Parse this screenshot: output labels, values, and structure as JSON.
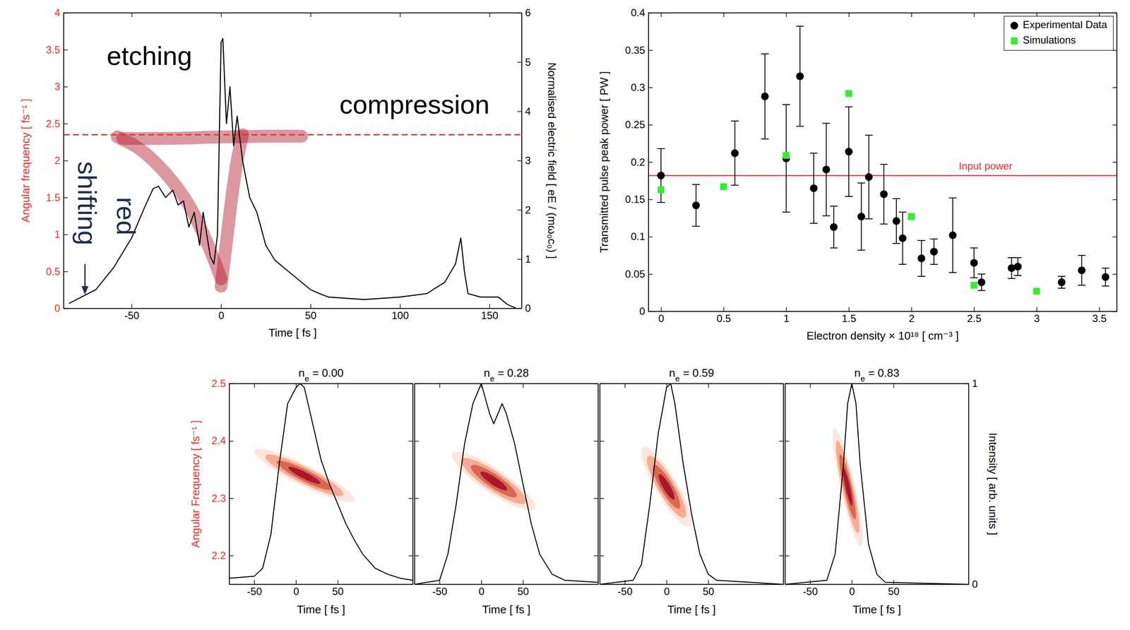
{
  "chart_data": [
    {
      "type": "line",
      "xlabel": "Time [ fs ]",
      "ylabel": "Angular frequency [ fs⁻¹ ]",
      "y2label": "Normalised electric field [ eE / (mω₀c₀) ]",
      "xlim": [
        -88,
        168
      ],
      "xticks": [
        -50,
        0,
        50,
        100,
        150
      ],
      "ylim": [
        0,
        4
      ],
      "yticks": [
        0,
        0.5,
        1,
        1.5,
        2,
        2.5,
        3,
        3.5,
        4
      ],
      "y2lim": [
        0,
        6
      ],
      "y2ticks": [
        0,
        1,
        2,
        3,
        4,
        5,
        6
      ],
      "hline": {
        "value": 2.35,
        "color": "#e8332a",
        "line_style": "dashed"
      },
      "annotations": [
        "etching",
        "compression",
        "red",
        "shifting"
      ],
      "series": [
        {
          "type": "band",
          "color": "#b2182b",
          "x": [
            -58,
            -45,
            -30,
            -18,
            -8,
            0
          ],
          "values": [
            2.32,
            2.15,
            1.8,
            1.4,
            0.9,
            0.4
          ]
        },
        {
          "type": "band",
          "color": "#b2182b",
          "x": [
            0,
            3,
            6,
            9,
            12
          ],
          "values": [
            0.3,
            0.9,
            1.5,
            2.0,
            2.35
          ]
        },
        {
          "type": "band",
          "color": "#b2182b",
          "x": [
            -55,
            -30,
            0,
            25,
            45
          ],
          "values": [
            2.3,
            2.3,
            2.32,
            2.33,
            2.33
          ]
        },
        {
          "type": "line",
          "color": "#000000",
          "axis": "y2",
          "x": [
            -85,
            -70,
            -60,
            -50,
            -43,
            -38,
            -35,
            -31,
            -27,
            -24,
            -21,
            -18,
            -15,
            -12,
            -10,
            -8,
            -6,
            -4,
            -2,
            0,
            1,
            3,
            5,
            7,
            9,
            12,
            16,
            20,
            25,
            30,
            35,
            40,
            45,
            50,
            55,
            60,
            80,
            100,
            115,
            125,
            131,
            134,
            136,
            138,
            145,
            155,
            160,
            165
          ],
          "values": [
            0.1,
            0.38,
            0.83,
            1.43,
            2.03,
            2.43,
            2.48,
            2.25,
            2.4,
            2.1,
            2.18,
            1.65,
            1.95,
            1.28,
            1.95,
            1.5,
            1.05,
            0.9,
            1.5,
            5.4,
            5.48,
            3.75,
            4.5,
            3.3,
            3.9,
            3.0,
            2.25,
            1.95,
            1.28,
            0.98,
            0.83,
            0.68,
            0.53,
            0.38,
            0.3,
            0.23,
            0.18,
            0.23,
            0.3,
            0.53,
            0.9,
            1.43,
            0.75,
            0.3,
            0.23,
            0.23,
            0.08,
            0
          ]
        }
      ]
    },
    {
      "type": "scatter",
      "xlabel": "Electron density × 10¹⁸ [ cm⁻³ ]",
      "ylabel": "Transmitted pulse peak power [ PW ]",
      "xlim": [
        -0.1,
        3.64
      ],
      "xticks": [
        0,
        0.5,
        1,
        1.5,
        2,
        2.5,
        3,
        3.5
      ],
      "ylim": [
        0,
        0.4
      ],
      "yticks": [
        0,
        0.05,
        0.1,
        0.15,
        0.2,
        0.25,
        0.3,
        0.35,
        0.4
      ],
      "legend": "upper right",
      "hline": {
        "value": 0.182,
        "label": "Input power",
        "color": "#e8332a"
      },
      "series": [
        {
          "name": "Experimental Data",
          "color": "#000000",
          "marker": "circle",
          "x": [
            0,
            0.28,
            0.59,
            0.83,
            1.0,
            1.11,
            1.22,
            1.32,
            1.38,
            1.5,
            1.6,
            1.66,
            1.78,
            1.88,
            1.93,
            2.08,
            2.18,
            2.33,
            2.5,
            2.56,
            2.8,
            2.85,
            3.2,
            3.36,
            3.55
          ],
          "values": [
            0.182,
            0.142,
            0.212,
            0.288,
            0.205,
            0.315,
            0.165,
            0.19,
            0.113,
            0.214,
            0.127,
            0.18,
            0.157,
            0.121,
            0.098,
            0.071,
            0.08,
            0.102,
            0.065,
            0.039,
            0.058,
            0.06,
            0.039,
            0.055,
            0.046
          ],
          "errors": [
            0.036,
            0.028,
            0.043,
            0.057,
            0.072,
            0.067,
            0.047,
            0.062,
            0.028,
            0.06,
            0.045,
            0.056,
            0.04,
            0.03,
            0.035,
            0.024,
            0.017,
            0.05,
            0.02,
            0.011,
            0.014,
            0.012,
            0.008,
            0.02,
            0.012
          ]
        },
        {
          "name": "Simulations",
          "color": "#33ee33",
          "marker": "square",
          "x": [
            0,
            0.5,
            1.0,
            1.5,
            2.0,
            2.5,
            3.0
          ],
          "values": [
            0.163,
            0.167,
            0.209,
            0.292,
            0.127,
            0.035,
            0.027
          ]
        }
      ]
    },
    {
      "type": "line",
      "title": {
        "base": "n",
        "sub": "e",
        "rest": " = 0.00"
      },
      "xlabel": "Time [ fs ]",
      "ylabel": "Angular Frequency [ fs⁻¹ ]",
      "xlim": [
        -80,
        140
      ],
      "xticks": [
        -50,
        0,
        50
      ],
      "ylim": [
        2.15,
        2.5
      ],
      "yticks": [
        2.2,
        2.3,
        2.4,
        2.5
      ],
      "y2lim": [
        0,
        1
      ],
      "spectrogram": {
        "t": 10,
        "w": 2.34,
        "t_width": 60,
        "w_width": 0.02,
        "chirp": -0.0007,
        "color": "#a50f26"
      },
      "series": [
        {
          "color": "#000000",
          "axis": "y2",
          "x": [
            -80,
            -50,
            -40,
            -30,
            -20,
            -10,
            0,
            5,
            10,
            20,
            30,
            40,
            50,
            60,
            70,
            80,
            95,
            110,
            125,
            140
          ],
          "values": [
            0.03,
            0.04,
            0.08,
            0.25,
            0.6,
            0.9,
            0.98,
            1.0,
            0.98,
            0.8,
            0.62,
            0.5,
            0.4,
            0.3,
            0.22,
            0.15,
            0.08,
            0.05,
            0.03,
            0.02
          ]
        }
      ]
    },
    {
      "type": "line",
      "title": {
        "base": "n",
        "sub": "e",
        "rest": " = 0.28"
      },
      "xlabel": "Time [ fs ]",
      "tick_labels": "x",
      "xlim": [
        -80,
        140
      ],
      "xticks": [
        -50,
        0,
        50
      ],
      "ylim": [
        2.15,
        2.5
      ],
      "yticks": [
        2.2,
        2.3,
        2.4,
        2.5
      ],
      "y2lim": [
        0,
        1
      ],
      "spectrogram": {
        "t": 15,
        "w": 2.33,
        "t_width": 50,
        "w_width": 0.025,
        "chirp": -0.0009,
        "color": "#a50f26"
      },
      "series": [
        {
          "color": "#000000",
          "axis": "y2",
          "x": [
            -80,
            -50,
            -40,
            -30,
            -20,
            -10,
            0,
            10,
            15,
            20,
            25,
            30,
            40,
            50,
            60,
            70,
            85,
            100,
            140
          ],
          "values": [
            0,
            0.02,
            0.15,
            0.4,
            0.7,
            0.9,
            1.0,
            0.85,
            0.8,
            0.85,
            0.9,
            0.85,
            0.7,
            0.5,
            0.3,
            0.15,
            0.05,
            0.02,
            0.01
          ]
        }
      ]
    },
    {
      "type": "line",
      "title": {
        "base": "n",
        "sub": "e",
        "rest": " = 0.59"
      },
      "xlabel": "Time [ fs ]",
      "tick_labels": "x",
      "xlim": [
        -80,
        140
      ],
      "xticks": [
        -50,
        0,
        50
      ],
      "ylim": [
        2.15,
        2.5
      ],
      "yticks": [
        2.2,
        2.3,
        2.4,
        2.5
      ],
      "y2lim": [
        0,
        1
      ],
      "spectrogram": {
        "t": 0,
        "w": 2.32,
        "t_width": 30,
        "w_width": 0.035,
        "chirp": -0.002,
        "color": "#a50f26"
      },
      "series": [
        {
          "color": "#000000",
          "axis": "y2",
          "x": [
            -80,
            -40,
            -30,
            -20,
            -10,
            0,
            5,
            10,
            20,
            30,
            40,
            50,
            60,
            140
          ],
          "values": [
            0,
            0.02,
            0.1,
            0.4,
            0.75,
            0.98,
            1.0,
            0.9,
            0.6,
            0.35,
            0.15,
            0.05,
            0.02,
            0
          ]
        }
      ]
    },
    {
      "type": "line",
      "title": {
        "base": "n",
        "sub": "e",
        "rest": " = 0.83"
      },
      "xlabel": "Time [ fs ]",
      "y2label": "Intensity [ arb. units ]",
      "tick_labels": "x",
      "xlim": [
        -80,
        140
      ],
      "xticks": [
        -50,
        0,
        50
      ],
      "ylim": [
        2.15,
        2.5
      ],
      "yticks": [
        2.2,
        2.3,
        2.4,
        2.5
      ],
      "y2lim": [
        0,
        1
      ],
      "y2ticks": [
        0,
        1
      ],
      "spectrogram": {
        "t": -5,
        "w": 2.32,
        "t_width": 18,
        "w_width": 0.05,
        "chirp": -0.005,
        "color": "#a50f26"
      },
      "series": [
        {
          "color": "#000000",
          "axis": "y2",
          "x": [
            -80,
            -30,
            -20,
            -10,
            -5,
            0,
            5,
            10,
            20,
            30,
            40,
            140
          ],
          "values": [
            0,
            0.02,
            0.15,
            0.6,
            0.9,
            1.0,
            0.9,
            0.6,
            0.2,
            0.05,
            0.01,
            0
          ]
        }
      ]
    }
  ]
}
